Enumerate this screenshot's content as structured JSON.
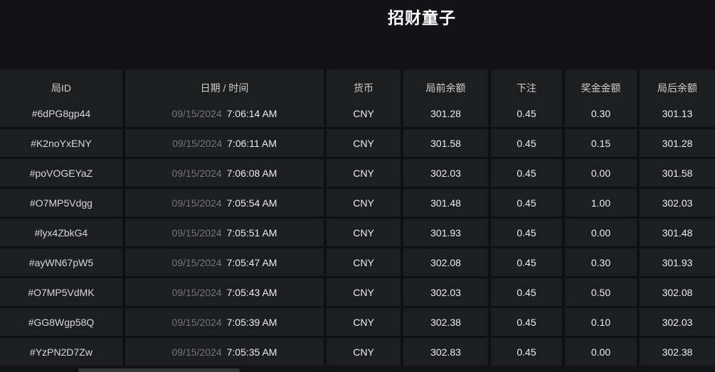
{
  "title": "招财童子",
  "colors": {
    "page_background": "#131317",
    "cell_background": "#1d1e20",
    "separator": "#0f1013",
    "title_text": "#ffffff",
    "header_text": "#d3d0ca",
    "date_text": "#76767a",
    "value_text": "#ededee"
  },
  "table": {
    "columns": [
      {
        "key": "id",
        "label": "局ID"
      },
      {
        "key": "datetime",
        "label": "日期 / 时间"
      },
      {
        "key": "currency",
        "label": "货币"
      },
      {
        "key": "balance_before",
        "label": "局前余额"
      },
      {
        "key": "bet",
        "label": "下注"
      },
      {
        "key": "prize",
        "label": "奖金金额"
      },
      {
        "key": "balance_after",
        "label": "局后余额"
      }
    ],
    "rows": [
      {
        "id": "#6dPG8gp44",
        "date": "09/15/2024",
        "time": "7:06:14 AM",
        "currency": "CNY",
        "balance_before": "301.28",
        "bet": "0.45",
        "prize": "0.30",
        "balance_after": "301.13"
      },
      {
        "id": "#K2noYxENY",
        "date": "09/15/2024",
        "time": "7:06:11 AM",
        "currency": "CNY",
        "balance_before": "301.58",
        "bet": "0.45",
        "prize": "0.15",
        "balance_after": "301.28"
      },
      {
        "id": "#poVOGEYaZ",
        "date": "09/15/2024",
        "time": "7:06:08 AM",
        "currency": "CNY",
        "balance_before": "302.03",
        "bet": "0.45",
        "prize": "0.00",
        "balance_after": "301.58"
      },
      {
        "id": "#O7MP5Vdgg",
        "date": "09/15/2024",
        "time": "7:05:54 AM",
        "currency": "CNY",
        "balance_before": "301.48",
        "bet": "0.45",
        "prize": "1.00",
        "balance_after": "302.03"
      },
      {
        "id": "#lyx4ZbkG4",
        "date": "09/15/2024",
        "time": "7:05:51 AM",
        "currency": "CNY",
        "balance_before": "301.93",
        "bet": "0.45",
        "prize": "0.00",
        "balance_after": "301.48"
      },
      {
        "id": "#ayWN67pW5",
        "date": "09/15/2024",
        "time": "7:05:47 AM",
        "currency": "CNY",
        "balance_before": "302.08",
        "bet": "0.45",
        "prize": "0.30",
        "balance_after": "301.93"
      },
      {
        "id": "#O7MP5VdMK",
        "date": "09/15/2024",
        "time": "7:05:43 AM",
        "currency": "CNY",
        "balance_before": "302.03",
        "bet": "0.45",
        "prize": "0.50",
        "balance_after": "302.08"
      },
      {
        "id": "#GG8Wgp58Q",
        "date": "09/15/2024",
        "time": "7:05:39 AM",
        "currency": "CNY",
        "balance_before": "302.38",
        "bet": "0.45",
        "prize": "0.10",
        "balance_after": "302.03"
      },
      {
        "id": "#YzPN2D7Zw",
        "date": "09/15/2024",
        "time": "7:05:35 AM",
        "currency": "CNY",
        "balance_before": "302.83",
        "bet": "0.45",
        "prize": "0.00",
        "balance_after": "302.38"
      }
    ]
  }
}
